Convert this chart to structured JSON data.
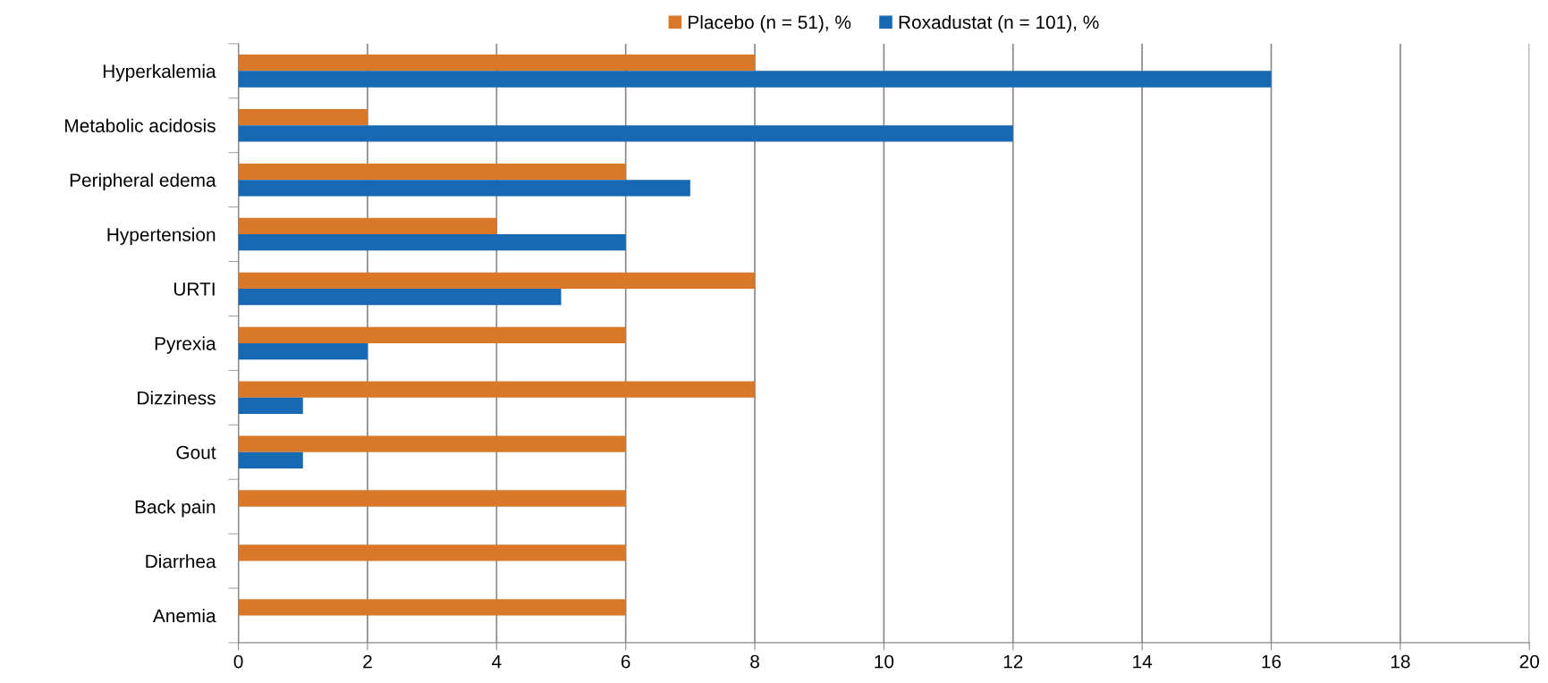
{
  "chart_data": {
    "type": "bar",
    "orientation": "horizontal",
    "categories": [
      "Hyperkalemia",
      "Metabolic acidosis",
      "Peripheral edema",
      "Hypertension",
      "URTI",
      "Pyrexia",
      "Dizziness",
      "Gout",
      "Back pain",
      "Diarrhea",
      "Anemia"
    ],
    "series": [
      {
        "name": "Placebo (n = 51), %",
        "color": "#d97828",
        "values": [
          8,
          2,
          6,
          4,
          8,
          6,
          8,
          6,
          6,
          6,
          6
        ]
      },
      {
        "name": "Roxadustat (n = 101), %",
        "color": "#1769b4",
        "values": [
          16,
          12,
          7,
          6,
          5,
          2,
          1,
          1,
          null,
          null,
          null
        ]
      }
    ],
    "xlim": [
      0,
      20
    ],
    "xticks": [
      0,
      2,
      4,
      6,
      8,
      10,
      12,
      14,
      16,
      18,
      20
    ],
    "grid": "x",
    "legend": "top"
  }
}
